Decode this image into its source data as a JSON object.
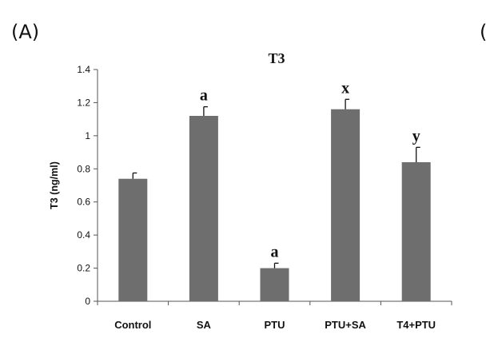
{
  "panel_label": "(A)",
  "next_panel_fragment": "(",
  "chart_data": {
    "type": "bar",
    "title": "T3",
    "xlabel": "",
    "ylabel": "T3 (ng/ml)",
    "ylim": [
      0,
      1.4
    ],
    "yticks": [
      "0",
      "0.2",
      "0.4",
      "0.6",
      "0.8",
      "1",
      "1.2",
      "1.4"
    ],
    "grid": false,
    "categories": [
      "Control",
      "SA",
      "PTU",
      "PTU+SA",
      "T4+PTU"
    ],
    "values": [
      0.74,
      1.12,
      0.2,
      1.16,
      0.84
    ],
    "errors": [
      0.035,
      0.055,
      0.03,
      0.06,
      0.09
    ],
    "annotations": [
      "",
      "a",
      "a",
      "x",
      "y"
    ],
    "bar_color": "#6e6e6e",
    "axis_color": "#555555"
  }
}
